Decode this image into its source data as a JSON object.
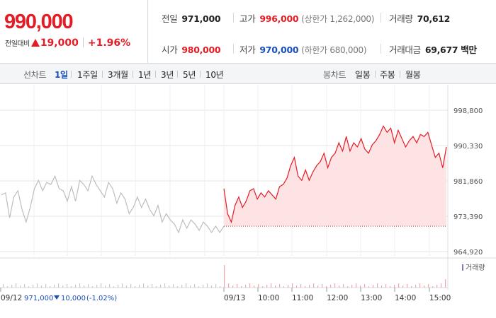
{
  "quote": {
    "current_price": "990,000",
    "change_label": "전일대비",
    "change_amount": "19,000",
    "change_percent": "+1.96%"
  },
  "stats": {
    "prev_close_label": "전일",
    "prev_close": "971,000",
    "high_label": "고가",
    "high": "996,000",
    "upper_limit": "(상한가 1,262,000)",
    "volume_label": "거래량",
    "volume": "70,612",
    "open_label": "시가",
    "open": "980,000",
    "low_label": "저가",
    "low": "970,000",
    "lower_limit": "(하한가 680,000)",
    "trade_value_label": "거래대금",
    "trade_value": "69,677 백만"
  },
  "line_tabs": {
    "label": "선차트",
    "items": [
      "1일",
      "1주일",
      "3개월",
      "1년",
      "3년",
      "5년",
      "10년"
    ],
    "active": "1일"
  },
  "candle_tabs": {
    "label": "봉차트",
    "items": [
      "일봉",
      "주봉",
      "월봉"
    ]
  },
  "colors": {
    "up": "#e41c25",
    "down": "#1a4fbe",
    "prev_day_line": "#bdbdbd",
    "fill": "#fde3e3"
  },
  "chart_data": {
    "type": "line",
    "y_ticks": [
      "998,800",
      "990,330",
      "981,860",
      "973,390",
      "964,920"
    ],
    "ylim": [
      964920,
      998800
    ],
    "x_ticks": [
      "09/12",
      "09/13",
      "10:00",
      "11:00",
      "12:00",
      "13:00",
      "14:00",
      "15:00"
    ],
    "volume_legend": "거래량",
    "prev_day_summary": {
      "date": "09/12",
      "close": "971,000",
      "change": "10,000",
      "change_pct": "(-1.02%)"
    },
    "baseline": 971000,
    "grid": true,
    "series": [
      {
        "x_range": [
          "09/12 09:00",
          "09/12 15:30"
        ],
        "values": [
          978500,
          979000,
          973000,
          978000,
          979500,
          975000,
          972000,
          975500,
          980000,
          982000,
          979500,
          981500,
          981000,
          983000,
          980000,
          979500,
          977000,
          980500,
          977000,
          982000,
          981000,
          979500,
          983000,
          981000,
          979500,
          978000,
          981500,
          980000,
          976500,
          979000,
          977500,
          974000,
          975500,
          978000,
          975500,
          977500,
          975000,
          973500,
          976000,
          972000,
          974000,
          972500,
          971500,
          969500,
          972500,
          970500,
          972500,
          971500,
          970000,
          972000,
          971000,
          969500,
          971000,
          969500,
          971000
        ]
      },
      {
        "x_range": [
          "09/13 09:00",
          "09/13 15:30"
        ],
        "values": [
          980000,
          974000,
          972000,
          976000,
          978000,
          975500,
          977000,
          979500,
          980000,
          977500,
          979000,
          978000,
          979500,
          978500,
          977500,
          980500,
          981000,
          982500,
          985500,
          987500,
          983000,
          982000,
          984500,
          982000,
          984000,
          985500,
          986500,
          988500,
          985000,
          987500,
          988500,
          991000,
          989000,
          992500,
          989000,
          991000,
          990000,
          992000,
          989500,
          988500,
          990500,
          991500,
          993000,
          995000,
          993500,
          994500,
          991000,
          994000,
          992000,
          990000,
          991500,
          992500,
          991000,
          993000,
          992500,
          993500,
          990500,
          987500,
          988500,
          985000,
          990000
        ]
      }
    ]
  }
}
